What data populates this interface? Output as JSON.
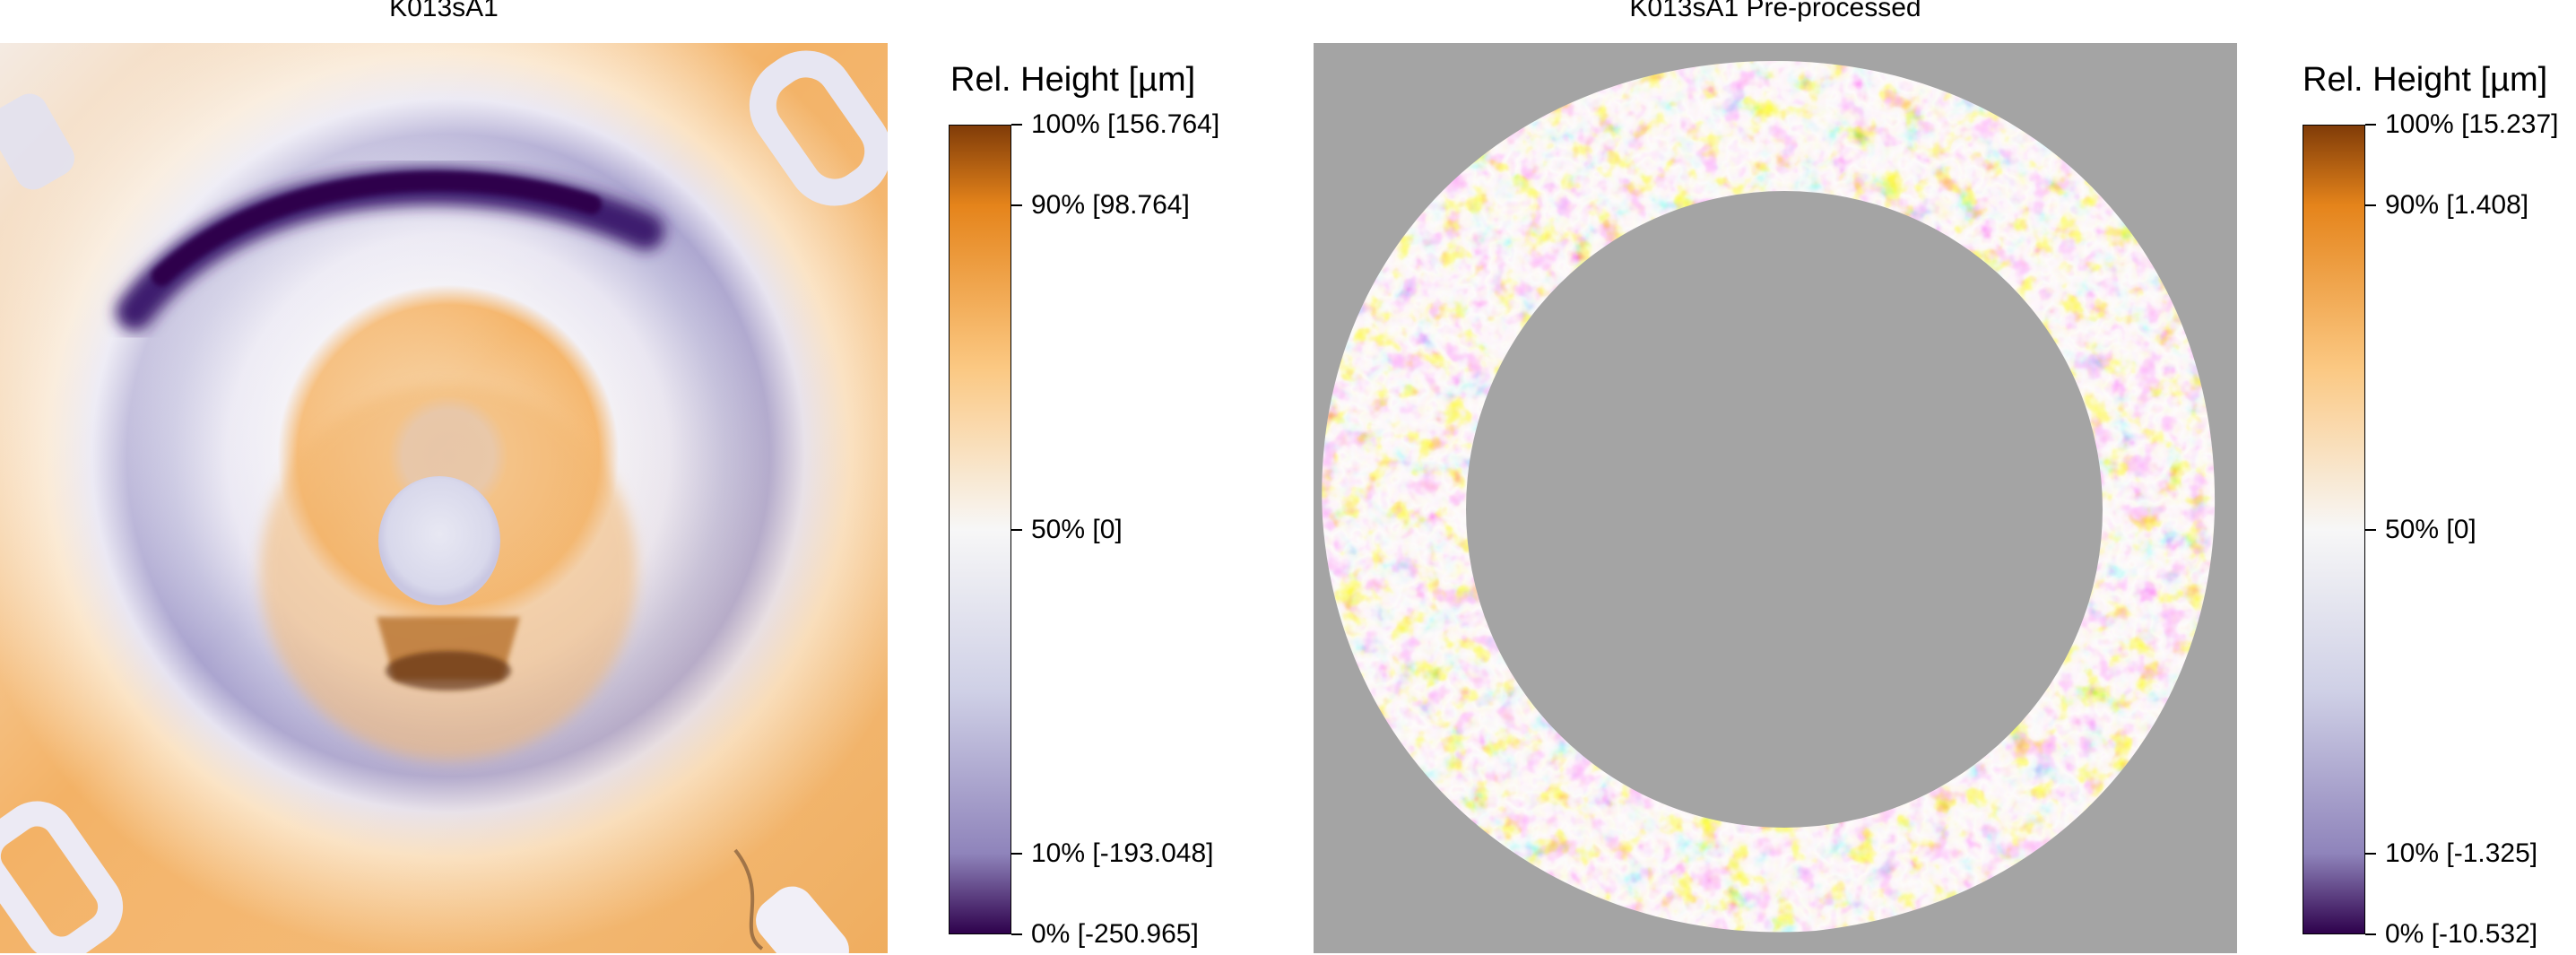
{
  "chart_data": [
    {
      "type": "heatmap",
      "title": "K013sA1",
      "colorbar": {
        "title": "Rel. Height [µm]",
        "min": -250.965,
        "max": 156.764,
        "stops": [
          {
            "pct": 0,
            "color": "#2d004b"
          },
          {
            "pct": 10,
            "color": "#8f84bb"
          },
          {
            "pct": 30,
            "color": "#cfd0e6"
          },
          {
            "pct": 50,
            "color": "#f7f7f7"
          },
          {
            "pct": 70,
            "color": "#fbc882"
          },
          {
            "pct": 90,
            "color": "#e5841b"
          },
          {
            "pct": 100,
            "color": "#7f3b08"
          }
        ],
        "ticks": [
          {
            "pct": 100,
            "label": "100% [156.764]"
          },
          {
            "pct": 90,
            "label": "90% [98.764]"
          },
          {
            "pct": 50,
            "label": "50% [0]"
          },
          {
            "pct": 10,
            "label": "10% [-193.048]"
          },
          {
            "pct": 0,
            "label": "0% [-250.965]"
          }
        ]
      }
    },
    {
      "type": "heatmap",
      "title": "K013sA1 Pre-processed",
      "colorbar": {
        "title": "Rel. Height [µm]",
        "min": -10.532,
        "max": 15.237,
        "stops": [
          {
            "pct": 0,
            "color": "#2d004b"
          },
          {
            "pct": 10,
            "color": "#8f84bb"
          },
          {
            "pct": 30,
            "color": "#cfd0e6"
          },
          {
            "pct": 50,
            "color": "#f7f7f7"
          },
          {
            "pct": 70,
            "color": "#fbc882"
          },
          {
            "pct": 90,
            "color": "#e5841b"
          },
          {
            "pct": 100,
            "color": "#7f3b08"
          }
        ],
        "ticks": [
          {
            "pct": 100,
            "label": "100% [15.237]"
          },
          {
            "pct": 90,
            "label": "90% [1.408]"
          },
          {
            "pct": 50,
            "label": "50% [0]"
          },
          {
            "pct": 10,
            "label": "10% [-1.325]"
          },
          {
            "pct": 0,
            "label": "0% [-10.532]"
          }
        ]
      }
    }
  ]
}
